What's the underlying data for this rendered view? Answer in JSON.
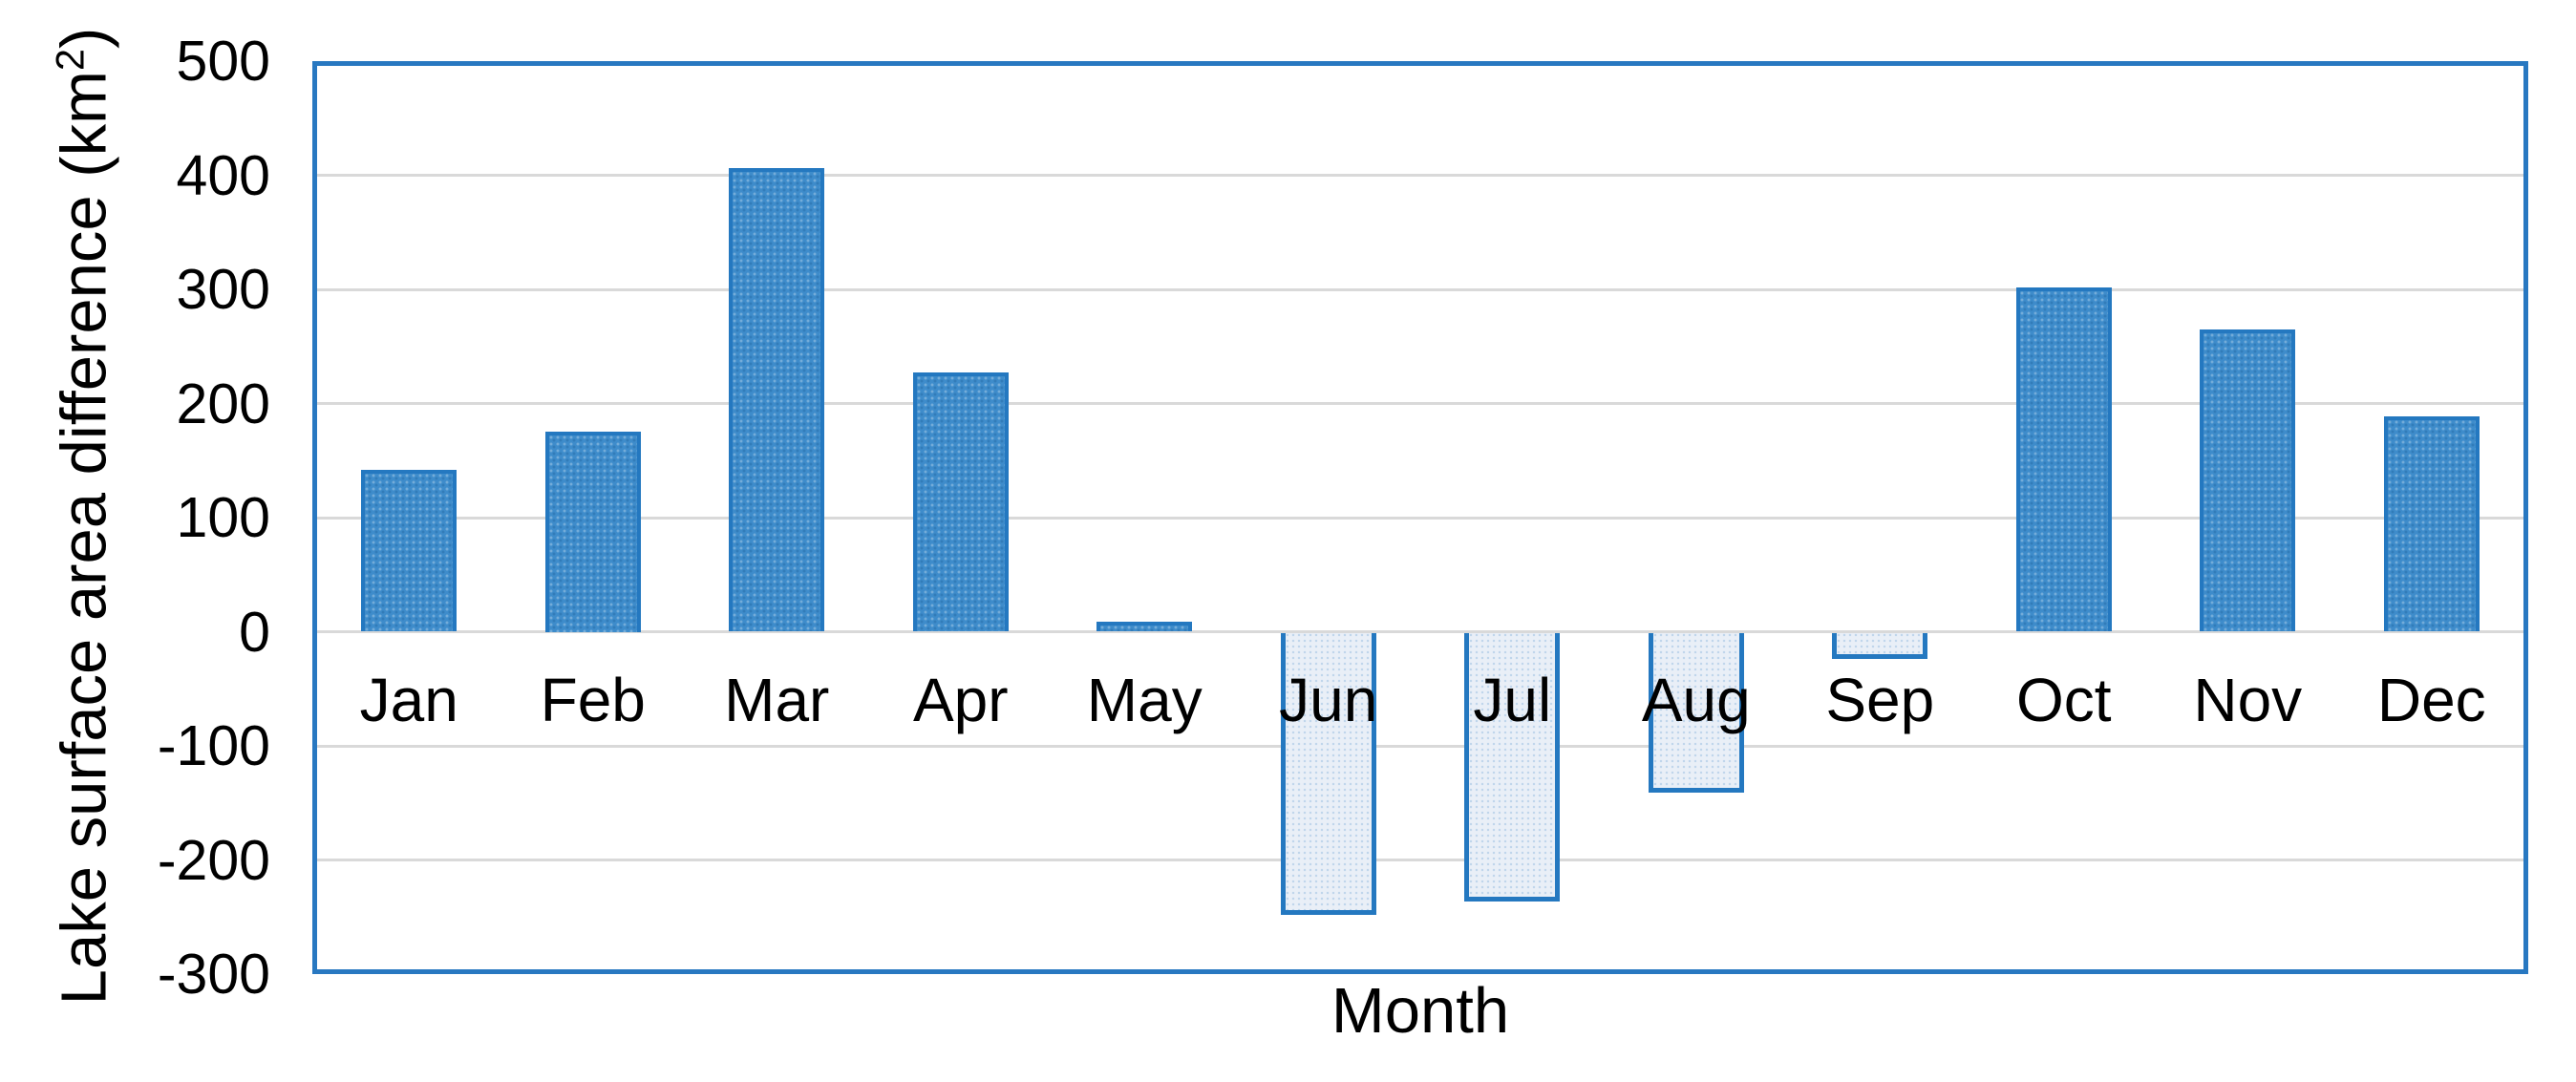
{
  "chart_data": {
    "type": "bar",
    "categories": [
      "Jan",
      "Feb",
      "Mar",
      "Apr",
      "May",
      "Jun",
      "Jul",
      "Aug",
      "Sep",
      "Oct",
      "Nov",
      "Dec"
    ],
    "values": [
      142,
      175,
      406,
      227,
      9,
      -247,
      -235,
      -140,
      -23,
      302,
      265,
      189
    ],
    "title": "",
    "xlabel": "Month",
    "ylabel": "Lake surface area difference (km²)",
    "ylabel_base": "Lake surface area difference (km",
    "ylabel_sup": "2",
    "ylabel_close": ")",
    "yticks": [
      500,
      400,
      300,
      200,
      100,
      0,
      -100,
      -200,
      -300
    ],
    "ylim": [
      -300,
      500
    ],
    "grid": true,
    "legend": "none",
    "colors": {
      "positive_fill": "#3E8CCB",
      "negative_fill": "#E9EFF7",
      "bar_border": "#2478C0",
      "frame_border": "#2878C1",
      "gridline": "#D9D9D9",
      "text": "#000000",
      "background": "#FFFFFF"
    }
  }
}
